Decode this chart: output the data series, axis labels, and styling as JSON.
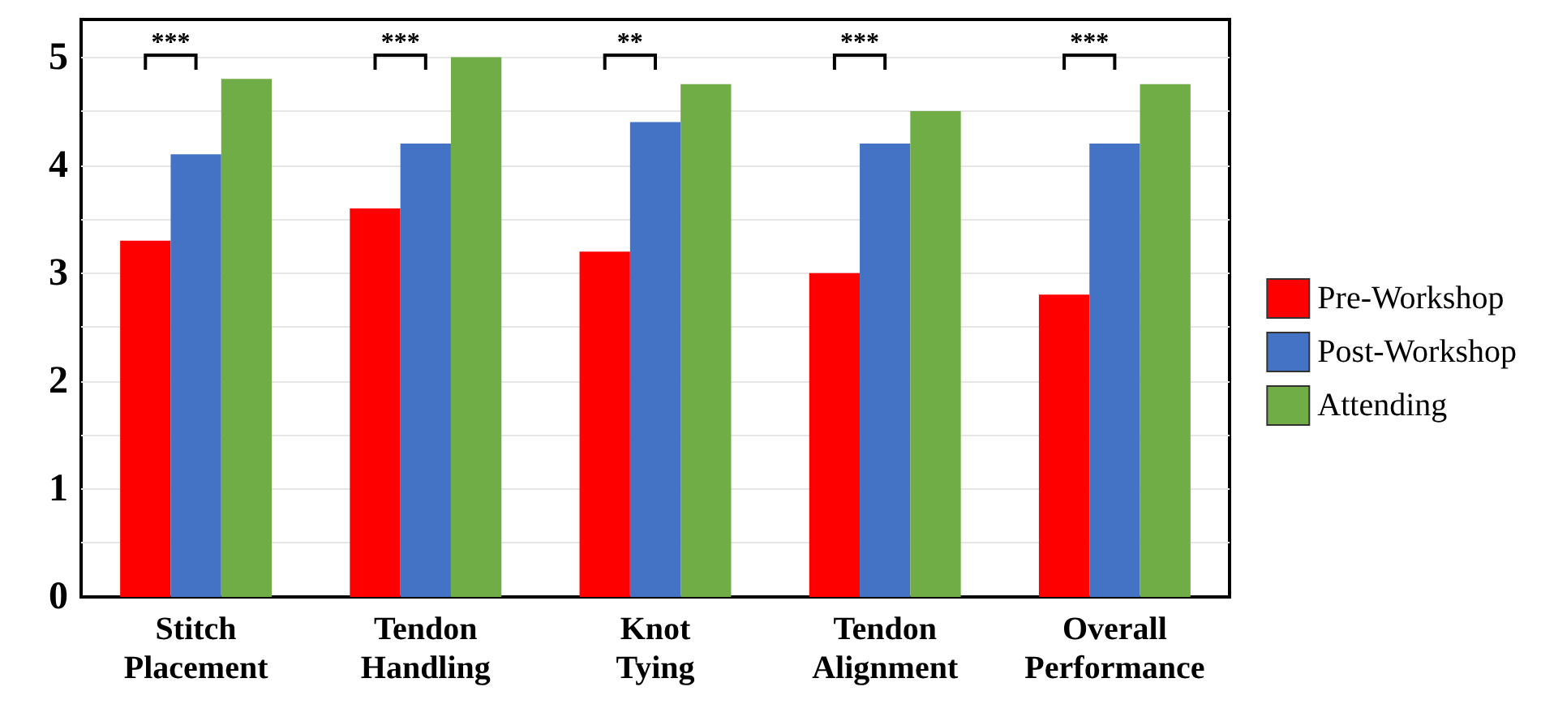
{
  "chart_data": {
    "type": "bar",
    "categories": [
      "Stitch Placement",
      "Tendon Handling",
      "Knot Tying",
      "Tendon Alignment",
      "Overall Performance"
    ],
    "series": [
      {
        "name": "Pre-Workshop",
        "color": "#ff0000",
        "values": [
          3.3,
          3.6,
          3.2,
          3.0,
          2.8
        ]
      },
      {
        "name": "Post-Workshop",
        "color": "#4472c4",
        "values": [
          4.1,
          4.2,
          4.4,
          4.2,
          4.2
        ]
      },
      {
        "name": "Attending",
        "color": "#70ad47",
        "values": [
          4.8,
          5.0,
          4.75,
          4.5,
          4.75
        ]
      }
    ],
    "ylim": [
      0,
      5.35
    ],
    "yticks": [
      0,
      {
        "value": 0.5,
        "label": null
      },
      1,
      {
        "value": 1.5,
        "label": null
      },
      2,
      {
        "value": 2.5,
        "label": null
      },
      3,
      {
        "value": 3.5,
        "label": null
      },
      4,
      {
        "value": 4.5,
        "label": null
      },
      5
    ],
    "grid": "y",
    "legend": "right",
    "annotations": [
      "***",
      "***",
      "**",
      "***",
      "***"
    ]
  }
}
